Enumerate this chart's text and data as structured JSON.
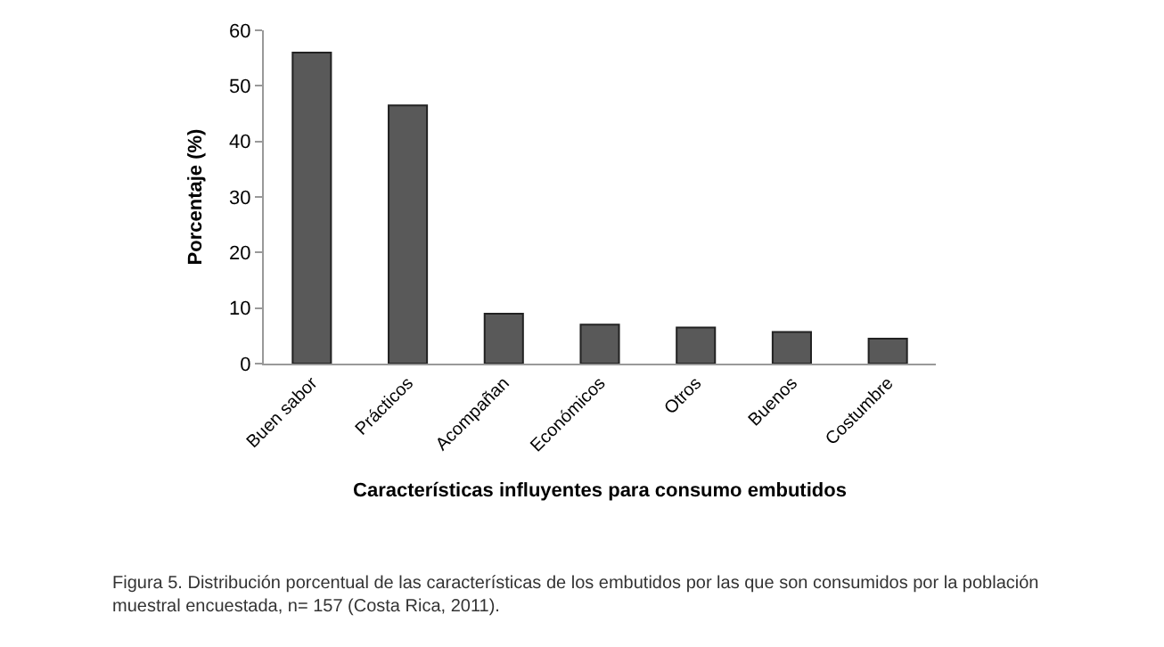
{
  "chart_data": {
    "type": "bar",
    "categories": [
      "Buen sabor",
      "Prácticos",
      "Acompañan",
      "Económicos",
      "Otros",
      "Buenos",
      "Costumbre"
    ],
    "values": [
      56,
      46.5,
      9,
      7,
      6.5,
      5.7,
      4.5
    ],
    "color": "#595959",
    "xlabel": "Características influyentes para consumo embutidos",
    "ylabel": "Porcentaje (%)",
    "ylim": [
      0,
      60
    ],
    "yticks": [
      0,
      10,
      20,
      30,
      40,
      50,
      60
    ],
    "annotations": [
      "Figura 5. Distribución porcentual de las características de los embutidos por las que son consumidos por la población muestral encuestada, n= 157 (Costa Rica, 2011)."
    ]
  }
}
